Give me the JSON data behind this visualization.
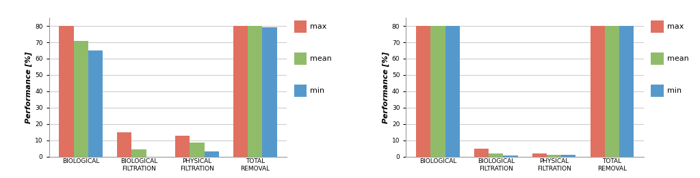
{
  "chart1": {
    "categories": [
      "BIOLOGICAL",
      "BIOLOGICAL\nFILTRATION",
      "PHYSICAL\nFILTRATION",
      "TOTAL\nREMOVAL"
    ],
    "max": [
      80,
      15,
      13,
      80
    ],
    "mean": [
      71,
      4.5,
      8.5,
      80
    ],
    "min": [
      65,
      0,
      3,
      79
    ],
    "ylim": [
      0,
      85
    ],
    "yticks": [
      0,
      10,
      20,
      30,
      40,
      50,
      60,
      70,
      80
    ]
  },
  "chart2": {
    "categories": [
      "BIOLOGICAL",
      "BIOLOGICAL\nFILTRATION",
      "PHYSICAL\nFILTRATION",
      "TOTAL\nREMOVAL"
    ],
    "max": [
      80,
      5,
      2,
      80
    ],
    "mean": [
      80,
      2,
      1.2,
      80
    ],
    "min": [
      80,
      0.8,
      1.2,
      80
    ],
    "ylim": [
      0,
      85
    ],
    "yticks": [
      0,
      10,
      20,
      30,
      40,
      50,
      60,
      70,
      80
    ]
  },
  "bar_colors": {
    "max": "#E07060",
    "mean": "#90BC6A",
    "min": "#5599CC"
  },
  "ylabel": "Performance [%]",
  "bar_width": 0.25,
  "background_color": "#FFFFFF",
  "grid_color": "#CCCCCC",
  "tick_fontsize": 6.5,
  "label_fontsize": 8,
  "legend_fontsize": 8
}
